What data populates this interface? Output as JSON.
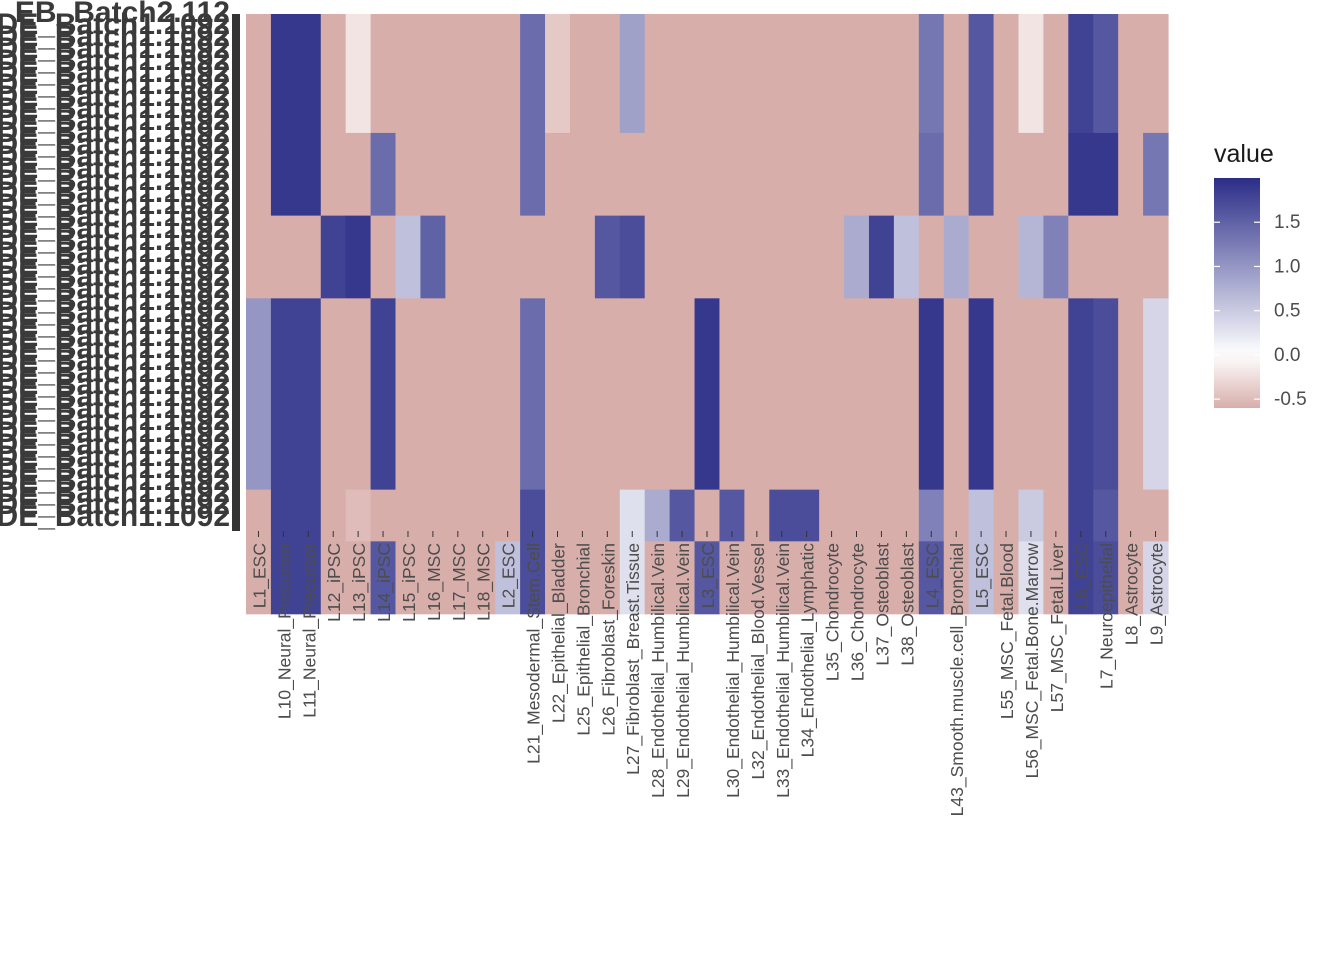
{
  "chart_data": {
    "type": "heatmap",
    "title": "",
    "xlabel": "",
    "ylabel": "",
    "columns": [
      "L1_ESC",
      "L10_Neural_Precursor",
      "L11_Neural_Precursor",
      "L12_iPSC",
      "L13_iPSC",
      "L14_iPSC",
      "L15_iPSC",
      "L16_MSC",
      "L17_MSC",
      "L18_MSC",
      "L2_ESC",
      "L21_Mesodermal_Stem.Cell",
      "L22_Epithelial_Bladder",
      "L25_Epithelial_Bronchial",
      "L26_Fibroblast_Foreskin",
      "L27_Fibroblast_Breast.Tissue",
      "L28_Endothelial_Humbilical.Vein",
      "L29_Endothelial_Humbilical.Vein",
      "L3_ESC",
      "L30_Endothelial_Humbilical.Vein",
      "L32_Endothelial_Blood.Vessel",
      "L33_Endothelial_Humbilical.Vein",
      "L34_Endothelial_Lymphatic",
      "L35_Chondrocyte",
      "L36_Chondrocyte",
      "L37_Osteoblast",
      "L38_Osteoblast",
      "L4_ESC",
      "L43_Smooth.muscle.cell_Bronchial",
      "L5_ESC",
      "L55_MSC_Fetal.Blood",
      "L56_MSC_Fetal.Bone.Marrow",
      "L57_MSC_Fetal.Liver",
      "L6_ESC",
      "L7_Neuroepithelial",
      "L8_Astrocyte",
      "L9_Astrocyte"
    ],
    "row_label_fragments": [
      "EB_Batch2.112",
      "DE_Batch1.1092"
    ],
    "row_groups": [
      {
        "row_fraction": 0.23,
        "values": [
          -0.6,
          1.9,
          1.9,
          -0.6,
          -0.2,
          -0.6,
          -0.6,
          -0.6,
          -0.6,
          -0.6,
          -0.6,
          1.4,
          -0.4,
          -0.6,
          -0.6,
          0.9,
          -0.6,
          -0.6,
          -0.6,
          -0.6,
          -0.6,
          -0.6,
          -0.6,
          -0.6,
          -0.6,
          -0.6,
          -0.6,
          1.3,
          -0.6,
          1.6,
          -0.6,
          -0.2,
          -0.6,
          1.8,
          1.6,
          -0.6,
          -0.6
        ]
      },
      {
        "row_fraction": 0.16,
        "values": [
          -0.6,
          1.9,
          1.9,
          -0.6,
          -0.6,
          1.4,
          -0.6,
          -0.6,
          -0.6,
          -0.6,
          -0.6,
          1.4,
          -0.6,
          -0.6,
          -0.6,
          -0.6,
          -0.6,
          -0.6,
          -0.6,
          -0.6,
          -0.6,
          -0.6,
          -0.6,
          -0.6,
          -0.6,
          -0.6,
          -0.6,
          1.4,
          -0.6,
          1.6,
          -0.6,
          -0.6,
          -0.6,
          1.9,
          1.9,
          -0.6,
          1.3
        ]
      },
      {
        "row_fraction": 0.16,
        "values": [
          -0.6,
          -0.6,
          -0.6,
          1.8,
          1.9,
          -0.6,
          0.6,
          1.5,
          -0.6,
          -0.6,
          -0.6,
          -0.6,
          -0.6,
          -0.6,
          1.6,
          1.7,
          -0.6,
          -0.6,
          -0.6,
          -0.6,
          -0.6,
          -0.6,
          -0.6,
          -0.6,
          0.8,
          1.8,
          0.6,
          -0.6,
          0.8,
          -0.6,
          -0.6,
          0.7,
          1.2,
          -0.6,
          -0.6,
          -0.6,
          -0.6
        ]
      },
      {
        "row_fraction": 0.37,
        "values": [
          1.0,
          1.8,
          1.8,
          -0.6,
          -0.6,
          1.8,
          -0.6,
          -0.6,
          -0.6,
          -0.6,
          -0.6,
          1.4,
          -0.6,
          -0.6,
          -0.6,
          -0.6,
          -0.6,
          -0.6,
          1.9,
          -0.6,
          -0.6,
          -0.6,
          -0.6,
          -0.6,
          -0.6,
          -0.6,
          -0.6,
          1.9,
          -0.6,
          1.9,
          -0.6,
          -0.6,
          -0.6,
          1.8,
          1.7,
          -0.6,
          0.4
        ]
      },
      {
        "row_fraction": 0.1,
        "values": [
          -0.6,
          1.8,
          1.8,
          -0.6,
          -0.5,
          -0.6,
          -0.6,
          -0.6,
          -0.6,
          -0.6,
          -0.6,
          1.7,
          -0.6,
          -0.6,
          -0.6,
          0.3,
          0.8,
          1.6,
          -0.6,
          1.6,
          -0.6,
          1.7,
          1.7,
          -0.6,
          -0.6,
          -0.6,
          -0.6,
          1.2,
          -0.6,
          0.6,
          -0.6,
          0.5,
          -0.6,
          1.8,
          1.6,
          -0.6,
          -0.6
        ]
      },
      {
        "row_fraction": 0.14,
        "values": [
          -0.6,
          1.8,
          1.8,
          -0.6,
          -0.6,
          1.6,
          -0.6,
          -0.6,
          -0.6,
          -0.6,
          0.6,
          1.7,
          -0.6,
          -0.6,
          -0.6,
          0.3,
          -0.6,
          -0.6,
          1.6,
          -0.6,
          -0.6,
          -0.6,
          -0.6,
          -0.6,
          -0.6,
          -0.6,
          -0.6,
          1.6,
          -0.6,
          0.6,
          -0.6,
          0.3,
          -0.6,
          1.8,
          1.7,
          -0.6,
          0.4
        ]
      }
    ],
    "color_scale": {
      "low": "#d8aeab",
      "mid": "#ffffff",
      "high": "#2b2d88",
      "limits": [
        -0.6,
        2.0
      ],
      "midpoint": 0.0
    },
    "legend": {
      "title": "value",
      "ticks": [
        "1.5",
        "1.0",
        "0.5",
        "0.0",
        "-0.5"
      ],
      "tick_values": [
        1.5,
        1.0,
        0.5,
        0.0,
        -0.5
      ],
      "placement": "right"
    }
  }
}
